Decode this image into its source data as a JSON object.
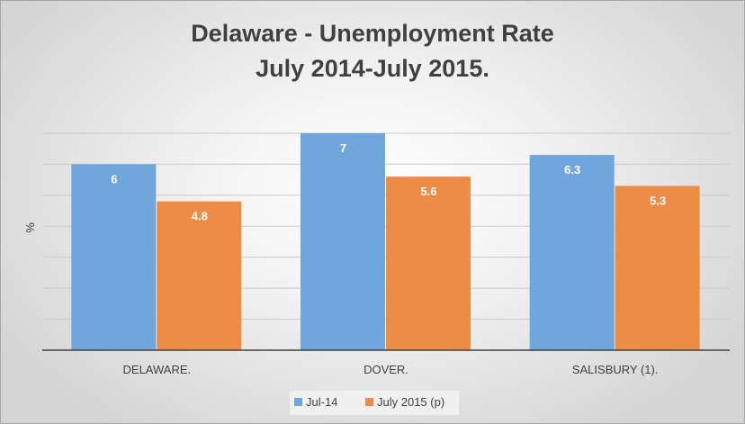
{
  "chart_data": {
    "type": "bar",
    "title_lines": [
      "Delaware - Unemployment Rate",
      "July 2014-July 2015."
    ],
    "ylabel": "%",
    "xlabel": "",
    "categories": [
      "DELAWARE.",
      "DOVER.",
      "SALISBURY (1)."
    ],
    "series": [
      {
        "name": "Jul-14",
        "values": [
          6,
          7,
          6.3
        ],
        "color": "#6fa6dc"
      },
      {
        "name": "July 2015 (p)",
        "values": [
          4.8,
          5.6,
          5.3
        ],
        "color": "#ed8c47"
      }
    ],
    "ylim": [
      0,
      7
    ],
    "grid": true,
    "legend_position": "bottom",
    "data_labels": true
  }
}
